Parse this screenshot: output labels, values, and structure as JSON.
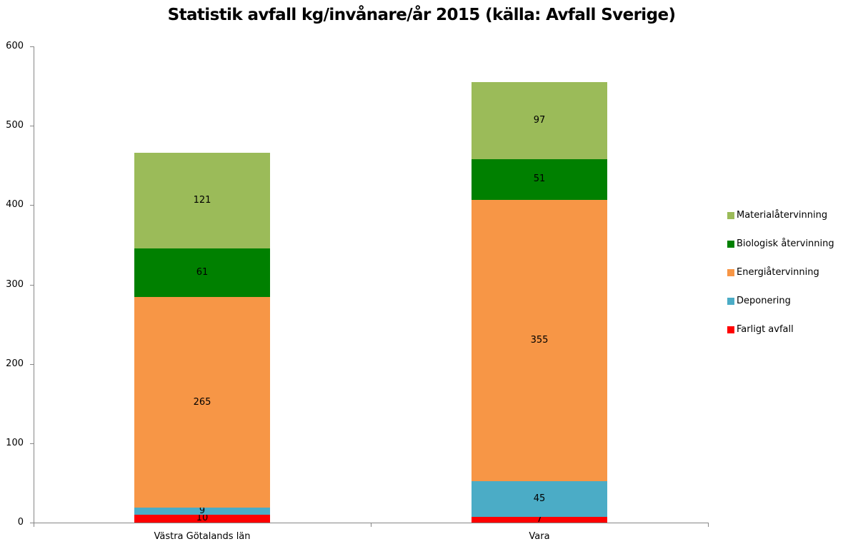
{
  "chart_data": {
    "type": "bar",
    "stacked": true,
    "title": "Statistik avfall kg/invånare/år 2015 (källa: Avfall Sverige)",
    "xlabel": "",
    "ylabel": "",
    "ylim": [
      0,
      600
    ],
    "yticks": [
      0,
      100,
      200,
      300,
      400,
      500,
      600
    ],
    "ytick_labels": [
      "0",
      "100",
      "200",
      "300",
      "400",
      "500",
      "600"
    ],
    "grid": false,
    "legend_position": "right",
    "categories": [
      "Västra Götalands län",
      "Vara"
    ],
    "series": [
      {
        "name": "Farligt avfall",
        "color": "#ff0000",
        "values": [
          10,
          7
        ]
      },
      {
        "name": "Deponering",
        "color": "#4bacc6",
        "values": [
          9,
          45
        ]
      },
      {
        "name": "Energiåtervinning",
        "color": "#f79646",
        "values": [
          265,
          355
        ]
      },
      {
        "name": "Biologisk återvinning",
        "color": "#008000",
        "values": [
          61,
          51
        ]
      },
      {
        "name": "Materialåtervinning",
        "color": "#9bbb59",
        "values": [
          121,
          97
        ]
      }
    ],
    "data_labels": true
  },
  "legend": {
    "items": [
      {
        "label": "Materialåtervinning",
        "color": "#9bbb59"
      },
      {
        "label": "Biologisk återvinning",
        "color": "#008000"
      },
      {
        "label": "Energiåtervinning",
        "color": "#f79646"
      },
      {
        "label": "Deponering",
        "color": "#4bacc6"
      },
      {
        "label": "Farligt avfall",
        "color": "#ff0000"
      }
    ]
  }
}
